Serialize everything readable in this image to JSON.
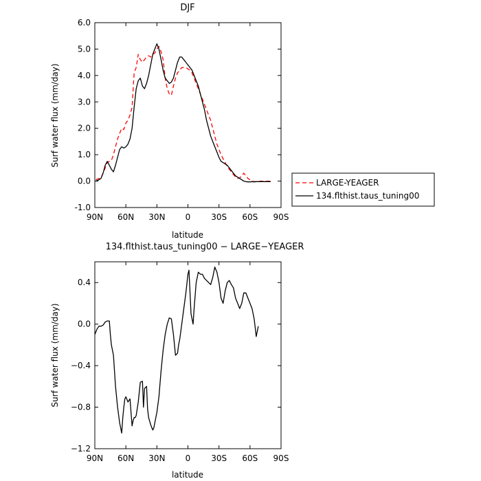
{
  "chart_data": [
    {
      "type": "line",
      "title": "DJF",
      "xlabel": "latitude",
      "ylabel": "Surf water flux (mm/day)",
      "xlim": [
        90,
        -90
      ],
      "ylim": [
        -1.0,
        6.0
      ],
      "xticks": [
        90,
        60,
        30,
        0,
        -30,
        -60,
        -90
      ],
      "xtick_labels": [
        "90N",
        "60N",
        "30N",
        "0",
        "30S",
        "60S",
        "90S"
      ],
      "yticks": [
        -1.0,
        0.0,
        1.0,
        2.0,
        3.0,
        4.0,
        5.0,
        6.0
      ],
      "ytick_labels": [
        "-1.0",
        "0.0",
        "1.0",
        "2.0",
        "3.0",
        "4.0",
        "5.0",
        "6.0"
      ],
      "legend_position": "right",
      "series": [
        {
          "name": "LARGE-YEAGER",
          "color": "#ff0000",
          "dash": "dashed",
          "x": [
            89,
            86,
            84,
            82,
            80,
            78,
            76,
            74,
            72,
            70,
            68,
            66,
            64,
            62,
            60,
            58,
            56,
            54,
            52,
            50,
            48,
            46,
            44,
            42,
            40,
            38,
            36,
            34,
            32,
            30,
            28,
            26,
            24,
            22,
            20,
            18,
            16,
            14,
            12,
            10,
            8,
            6,
            4,
            2,
            0,
            -2,
            -4,
            -6,
            -8,
            -10,
            -12,
            -14,
            -16,
            -18,
            -20,
            -22,
            -24,
            -26,
            -28,
            -30,
            -32,
            -34,
            -36,
            -38,
            -40,
            -42,
            -44,
            -46,
            -48,
            -50,
            -52,
            -54,
            -56,
            -58,
            -60,
            -62,
            -64,
            -66,
            -68,
            -70,
            -72,
            -74,
            -76,
            -78,
            -80
          ],
          "y": [
            0.05,
            0.1,
            0.12,
            0.3,
            0.5,
            0.7,
            0.75,
            0.78,
            1.0,
            1.3,
            1.6,
            1.8,
            2.0,
            1.95,
            2.2,
            2.3,
            2.5,
            2.8,
            4.1,
            4.3,
            4.8,
            4.6,
            4.5,
            4.6,
            4.7,
            4.75,
            4.7,
            4.8,
            4.85,
            5.0,
            5.1,
            4.9,
            4.6,
            3.9,
            3.5,
            3.3,
            3.25,
            3.6,
            3.9,
            4.1,
            4.2,
            4.3,
            4.3,
            4.3,
            4.25,
            4.2,
            4.1,
            3.9,
            3.7,
            3.5,
            3.3,
            3.1,
            2.9,
            2.7,
            2.5,
            2.3,
            2.0,
            1.7,
            1.4,
            1.2,
            1.0,
            0.85,
            0.7,
            0.55,
            0.45,
            0.35,
            0.25,
            0.15,
            0.1,
            0.12,
            0.2,
            0.3,
            0.2,
            0.1,
            0.05,
            0.0,
            -0.02,
            -0.02,
            -0.01,
            0.0,
            0.0,
            0.0,
            0.0,
            0.0,
            0.0
          ]
        },
        {
          "name": "134.flthist.taus_tuning00",
          "color": "#000000",
          "dash": "solid",
          "x": [
            89,
            86,
            84,
            82,
            80,
            78,
            76,
            74,
            72,
            70,
            68,
            66,
            64,
            62,
            60,
            58,
            56,
            54,
            52,
            50,
            48,
            46,
            44,
            42,
            40,
            38,
            36,
            34,
            32,
            30,
            28,
            26,
            24,
            22,
            20,
            18,
            16,
            14,
            12,
            10,
            8,
            6,
            4,
            2,
            0,
            -2,
            -4,
            -6,
            -8,
            -10,
            -12,
            -14,
            -16,
            -18,
            -20,
            -22,
            -24,
            -26,
            -28,
            -30,
            -32,
            -34,
            -36,
            -38,
            -40,
            -42,
            -44,
            -46,
            -48,
            -50,
            -52,
            -54,
            -56,
            -58,
            -60,
            -62,
            -64,
            -66,
            -68,
            -70,
            -72,
            -74,
            -76,
            -78,
            -80
          ],
          "y": [
            0.0,
            0.05,
            0.1,
            0.3,
            0.6,
            0.75,
            0.6,
            0.45,
            0.35,
            0.6,
            0.9,
            1.2,
            1.3,
            1.25,
            1.3,
            1.4,
            1.6,
            2.0,
            2.8,
            3.5,
            3.8,
            3.9,
            3.6,
            3.5,
            3.7,
            4.0,
            4.4,
            4.8,
            5.0,
            5.2,
            5.0,
            4.6,
            4.2,
            3.9,
            3.8,
            3.7,
            3.75,
            3.9,
            4.2,
            4.5,
            4.7,
            4.7,
            4.6,
            4.5,
            4.4,
            4.3,
            4.2,
            4.0,
            3.8,
            3.6,
            3.3,
            3.0,
            2.7,
            2.3,
            2.0,
            1.7,
            1.5,
            1.3,
            1.1,
            0.9,
            0.75,
            0.7,
            0.65,
            0.6,
            0.5,
            0.4,
            0.3,
            0.2,
            0.15,
            0.1,
            0.05,
            0.0,
            -0.02,
            -0.03,
            -0.03,
            -0.02,
            -0.03,
            -0.02,
            -0.02,
            -0.02,
            -0.02,
            -0.02,
            -0.02,
            -0.02,
            -0.02
          ]
        }
      ]
    },
    {
      "type": "line",
      "title": "134.flthist.taus_tuning00 − LARGE−YEAGER",
      "xlabel": "latitude",
      "ylabel": "Surf water flux (mm/day)",
      "xlim": [
        90,
        -90
      ],
      "ylim": [
        -1.2,
        0.6
      ],
      "xticks": [
        90,
        60,
        30,
        0,
        -30,
        -60,
        -90
      ],
      "xtick_labels": [
        "90N",
        "60N",
        "30N",
        "0",
        "30S",
        "60S",
        "90S"
      ],
      "yticks": [
        -1.2,
        -0.8,
        -0.4,
        0.0,
        0.4
      ],
      "ytick_labels": [
        "−1.2",
        "−0.8",
        "−0.4",
        "0.0",
        "0.4"
      ],
      "series": [
        {
          "color": "#000000",
          "dash": "solid",
          "x": [
            90,
            88,
            86,
            84,
            82,
            80,
            78,
            77,
            76,
            75,
            74,
            72,
            70,
            68,
            66,
            65,
            64,
            63,
            62,
            61,
            60,
            58,
            56,
            55,
            54,
            53,
            52,
            51,
            50,
            48,
            46,
            44,
            43,
            42,
            40,
            39,
            38,
            36,
            34,
            33,
            32,
            30,
            28,
            26,
            24,
            22,
            20,
            18,
            16,
            14,
            12,
            10,
            9,
            8,
            6,
            4,
            2,
            0,
            -1,
            -3,
            -5,
            -6,
            -8,
            -10,
            -12,
            -14,
            -16,
            -18,
            -20,
            -22,
            -24,
            -26,
            -28,
            -30,
            -32,
            -34,
            -36,
            -38,
            -40,
            -42,
            -44,
            -46,
            -48,
            -50,
            -52,
            -54,
            -56,
            -58,
            -60,
            -62,
            -64,
            -66,
            -68,
            -70,
            -72,
            -74,
            -76,
            -78,
            -80
          ],
          "y": [
            -0.1,
            -0.05,
            -0.02,
            -0.02,
            -0.01,
            0.02,
            0.03,
            0.03,
            0.03,
            -0.1,
            -0.2,
            -0.3,
            -0.6,
            -0.8,
            -0.95,
            -1.0,
            -1.05,
            -0.9,
            -0.8,
            -0.72,
            -0.7,
            -0.75,
            -0.72,
            -0.85,
            -0.98,
            -0.93,
            -0.9,
            -0.9,
            -0.88,
            -0.75,
            -0.56,
            -0.55,
            -0.8,
            -0.62,
            -0.6,
            -0.82,
            -0.9,
            -0.97,
            -1.02,
            -1.0,
            -0.95,
            -0.85,
            -0.7,
            -0.45,
            -0.25,
            -0.1,
            0.0,
            0.06,
            0.05,
            -0.1,
            -0.3,
            -0.28,
            -0.2,
            -0.15,
            0.0,
            0.15,
            0.3,
            0.48,
            0.52,
            0.1,
            0.0,
            0.15,
            0.4,
            0.5,
            0.48,
            0.48,
            0.44,
            0.42,
            0.4,
            0.38,
            0.45,
            0.55,
            0.5,
            0.4,
            0.25,
            0.2,
            0.32,
            0.4,
            0.42,
            0.38,
            0.35,
            0.25,
            0.2,
            0.15,
            0.2,
            0.3,
            0.3,
            0.25,
            0.2,
            0.15,
            0.05,
            -0.12,
            -0.02,
            null,
            null,
            null,
            null,
            null,
            null
          ]
        }
      ]
    }
  ]
}
